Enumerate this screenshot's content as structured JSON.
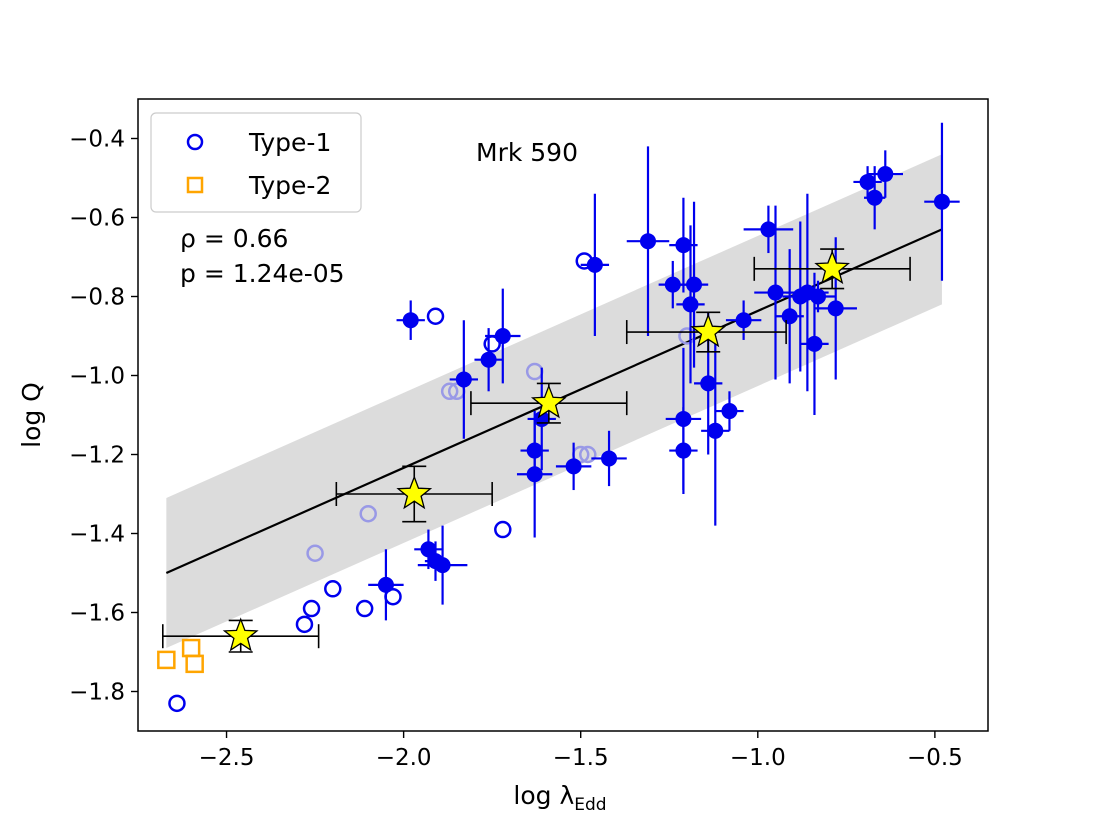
{
  "chart_data": {
    "type": "scatter",
    "title": "",
    "xlabel": "log λ",
    "xlabel_subscript": "Edd",
    "ylabel": "log Q",
    "xlim": [
      -2.75,
      -0.35
    ],
    "ylim": [
      -1.9,
      -0.3
    ],
    "xticks": [
      -2.5,
      -2.0,
      -1.5,
      -1.0,
      -0.5
    ],
    "xtick_labels": [
      "−2.5",
      "−2.0",
      "−1.5",
      "−1.0",
      "−0.5"
    ],
    "yticks": [
      -1.8,
      -1.6,
      -1.4,
      -1.2,
      -1.0,
      -0.8,
      -0.6,
      -0.4
    ],
    "ytick_labels": [
      "−1.8",
      "−1.6",
      "−1.4",
      "−1.2",
      "−1.0",
      "−0.8",
      "−0.6",
      "−0.4"
    ],
    "grid": false,
    "legend": {
      "location": "top-left",
      "entries": [
        {
          "label": "Type-1",
          "marker": "open-circle",
          "color": "#0000ee"
        },
        {
          "label": "Type-2",
          "marker": "open-square",
          "color": "#ffa500"
        }
      ]
    },
    "annotations": {
      "object_name": "Mrk 590",
      "rho_text": "ρ = 0.66",
      "p_text": "p = 1.24e-05"
    },
    "colors": {
      "type1": "#0000ee",
      "type1_faded": "#9999e6",
      "type2": "#ffa500",
      "star_fill": "#ffff00",
      "fit_line": "#000000",
      "band": "#dcdcdc"
    },
    "fit_line": {
      "x": [
        -2.67,
        -0.48
      ],
      "y": [
        -1.5,
        -0.63
      ]
    },
    "confidence_band": {
      "x": [
        -2.67,
        -0.48
      ],
      "upper": [
        -1.31,
        -0.44
      ],
      "lower": [
        -1.69,
        -0.82
      ]
    },
    "series": [
      {
        "name": "Type-1",
        "marker": "open-circle",
        "points": [
          {
            "x": -2.64,
            "y": -1.83
          },
          {
            "x": -2.28,
            "y": -1.63
          },
          {
            "x": -2.26,
            "y": -1.59
          },
          {
            "x": -2.2,
            "y": -1.54
          },
          {
            "x": -2.11,
            "y": -1.59
          },
          {
            "x": -2.03,
            "y": -1.56
          },
          {
            "x": -1.72,
            "y": -1.39
          },
          {
            "x": -1.91,
            "y": -0.85
          },
          {
            "x": -1.75,
            "y": -0.92
          },
          {
            "x": -1.49,
            "y": -0.71
          }
        ]
      },
      {
        "name": "",
        "marker": "open-circle-faded",
        "points": [
          {
            "x": -2.25,
            "y": -1.45
          },
          {
            "x": -2.1,
            "y": -1.35
          },
          {
            "x": -1.87,
            "y": -1.04
          },
          {
            "x": -1.85,
            "y": -1.04
          },
          {
            "x": -1.63,
            "y": -0.99
          },
          {
            "x": -1.5,
            "y": -1.2
          },
          {
            "x": -1.48,
            "y": -1.2
          },
          {
            "x": -1.2,
            "y": -0.9
          }
        ]
      },
      {
        "name": "",
        "marker": "filled-circle-errorbars",
        "points": [
          {
            "x": -2.05,
            "y": -1.53,
            "xerr": 0.05,
            "yerr": 0.09
          },
          {
            "x": -1.93,
            "y": -1.44,
            "xerr": 0.04,
            "yerr": 0.05
          },
          {
            "x": -1.91,
            "y": -1.47,
            "xerr": 0.03,
            "yerr": 0.05
          },
          {
            "x": -1.89,
            "y": -1.48,
            "xerr": 0.07,
            "yerr": 0.1
          },
          {
            "x": -1.98,
            "y": -0.86,
            "xerr": 0.04,
            "yerr": 0.05
          },
          {
            "x": -1.83,
            "y": -1.01,
            "xerr": 0.04,
            "yerr": 0.15
          },
          {
            "x": -1.76,
            "y": -0.96,
            "xerr": 0.04,
            "yerr": 0.08
          },
          {
            "x": -1.72,
            "y": -0.9,
            "xerr": 0.05,
            "yerr": 0.12
          },
          {
            "x": -1.63,
            "y": -1.19,
            "xerr": 0.04,
            "yerr": 0.08
          },
          {
            "x": -1.63,
            "y": -1.25,
            "xerr": 0.05,
            "yerr": 0.16
          },
          {
            "x": -1.61,
            "y": -1.11,
            "xerr": 0.04,
            "yerr": 0.13
          },
          {
            "x": -1.52,
            "y": -1.23,
            "xerr": 0.05,
            "yerr": 0.06
          },
          {
            "x": -1.46,
            "y": -0.72,
            "xerr": 0.04,
            "yerr": 0.18
          },
          {
            "x": -1.42,
            "y": -1.21,
            "xerr": 0.05,
            "yerr": 0.07
          },
          {
            "x": -1.31,
            "y": -0.66,
            "xerr": 0.06,
            "yerr": 0.24
          },
          {
            "x": -1.24,
            "y": -0.77,
            "xerr": 0.04,
            "yerr": 0.06
          },
          {
            "x": -1.21,
            "y": -0.67,
            "xerr": 0.04,
            "yerr": 0.12
          },
          {
            "x": -1.21,
            "y": -1.11,
            "xerr": 0.05,
            "yerr": 0.18
          },
          {
            "x": -1.21,
            "y": -1.19,
            "xerr": 0.04,
            "yerr": 0.11
          },
          {
            "x": -1.19,
            "y": -0.82,
            "xerr": 0.04,
            "yerr": 0.2
          },
          {
            "x": -1.18,
            "y": -0.77,
            "xerr": 0.04,
            "yerr": 0.21
          },
          {
            "x": -1.14,
            "y": -1.02,
            "xerr": 0.04,
            "yerr": 0.18
          },
          {
            "x": -1.12,
            "y": -1.14,
            "xerr": 0.04,
            "yerr": 0.24
          },
          {
            "x": -1.08,
            "y": -1.09,
            "xerr": 0.04,
            "yerr": 0.05
          },
          {
            "x": -1.04,
            "y": -0.86,
            "xerr": 0.05,
            "yerr": 0.05
          },
          {
            "x": -0.97,
            "y": -0.63,
            "xerr": 0.07,
            "yerr": 0.06
          },
          {
            "x": -0.95,
            "y": -0.79,
            "xerr": 0.06,
            "yerr": 0.22
          },
          {
            "x": -0.91,
            "y": -0.85,
            "xerr": 0.04,
            "yerr": 0.17
          },
          {
            "x": -0.88,
            "y": -0.8,
            "xerr": 0.05,
            "yerr": 0.19
          },
          {
            "x": -0.86,
            "y": -0.79,
            "xerr": 0.06,
            "yerr": 0.25
          },
          {
            "x": -0.83,
            "y": -0.8,
            "xerr": 0.05,
            "yerr": 0.04
          },
          {
            "x": -0.84,
            "y": -0.92,
            "xerr": 0.04,
            "yerr": 0.18
          },
          {
            "x": -0.78,
            "y": -0.83,
            "xerr": 0.06,
            "yerr": 0.18
          },
          {
            "x": -0.69,
            "y": -0.51,
            "xerr": 0.04,
            "yerr": 0.04
          },
          {
            "x": -0.67,
            "y": -0.55,
            "xerr": 0.03,
            "yerr": 0.08
          },
          {
            "x": -0.64,
            "y": -0.49,
            "xerr": 0.05,
            "yerr": 0.06
          },
          {
            "x": -0.48,
            "y": -0.56,
            "xerr": 0.05,
            "yerr": 0.2
          }
        ]
      },
      {
        "name": "Type-2",
        "marker": "open-square",
        "points": [
          {
            "x": -2.67,
            "y": -1.72
          },
          {
            "x": -2.6,
            "y": -1.69
          },
          {
            "x": -2.59,
            "y": -1.73
          }
        ]
      },
      {
        "name": "",
        "marker": "star-binned",
        "points": [
          {
            "x": -2.46,
            "y": -1.66,
            "xerr_low": 0.22,
            "xerr_high": 0.22,
            "yerr": 0.04
          },
          {
            "x": -1.97,
            "y": -1.3,
            "xerr_low": 0.22,
            "xerr_high": 0.22,
            "yerr": 0.07
          },
          {
            "x": -1.59,
            "y": -1.07,
            "xerr_low": 0.22,
            "xerr_high": 0.22,
            "yerr": 0.05
          },
          {
            "x": -1.14,
            "y": -0.89,
            "xerr_low": 0.23,
            "xerr_high": 0.22,
            "yerr": 0.05
          },
          {
            "x": -0.79,
            "y": -0.73,
            "xerr_low": 0.22,
            "xerr_high": 0.22,
            "yerr": 0.05
          }
        ]
      }
    ]
  }
}
